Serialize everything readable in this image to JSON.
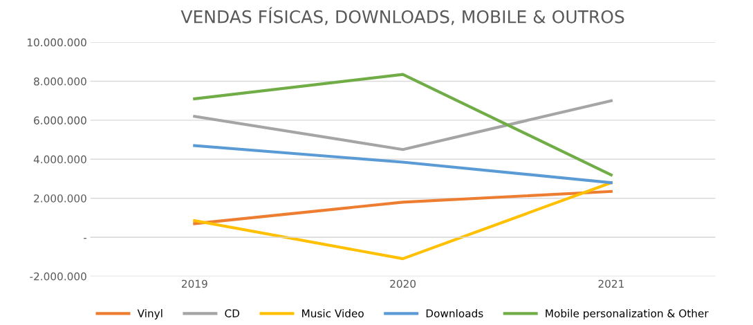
{
  "chart_data": {
    "type": "line",
    "title": "VENDAS FÍSICAS, DOWNLOADS, MOBILE & OUTROS",
    "categories": [
      "2019",
      "2020",
      "2021"
    ],
    "series": [
      {
        "name": "Vinyl",
        "color": "#ed7d31",
        "values": [
          700000,
          1800000,
          2350000
        ]
      },
      {
        "name": "CD",
        "color": "#a5a5a5",
        "values": [
          6200000,
          4500000,
          7000000
        ]
      },
      {
        "name": "Music Video",
        "color": "#ffc000",
        "values": [
          850000,
          -1100000,
          2800000
        ]
      },
      {
        "name": "Downloads",
        "color": "#5b9bd5",
        "values": [
          4700000,
          3850000,
          2800000
        ]
      },
      {
        "name": "Mobile personalization & Other",
        "color": "#70ad47",
        "values": [
          7100000,
          8350000,
          3200000
        ]
      }
    ],
    "ylim": [
      -2000000,
      10000000
    ],
    "yticks": [
      {
        "value": -2000000,
        "label": "-2.000.000"
      },
      {
        "value": 0,
        "label": "-"
      },
      {
        "value": 2000000,
        "label": "2.000.000"
      },
      {
        "value": 4000000,
        "label": "4.000.000"
      },
      {
        "value": 6000000,
        "label": "6.000.000"
      },
      {
        "value": 8000000,
        "label": "8.000.000"
      },
      {
        "value": 10000000,
        "label": "10.000.000"
      }
    ],
    "grid": "y",
    "legend": "bottom",
    "marker": "none",
    "line_style": "solid"
  }
}
